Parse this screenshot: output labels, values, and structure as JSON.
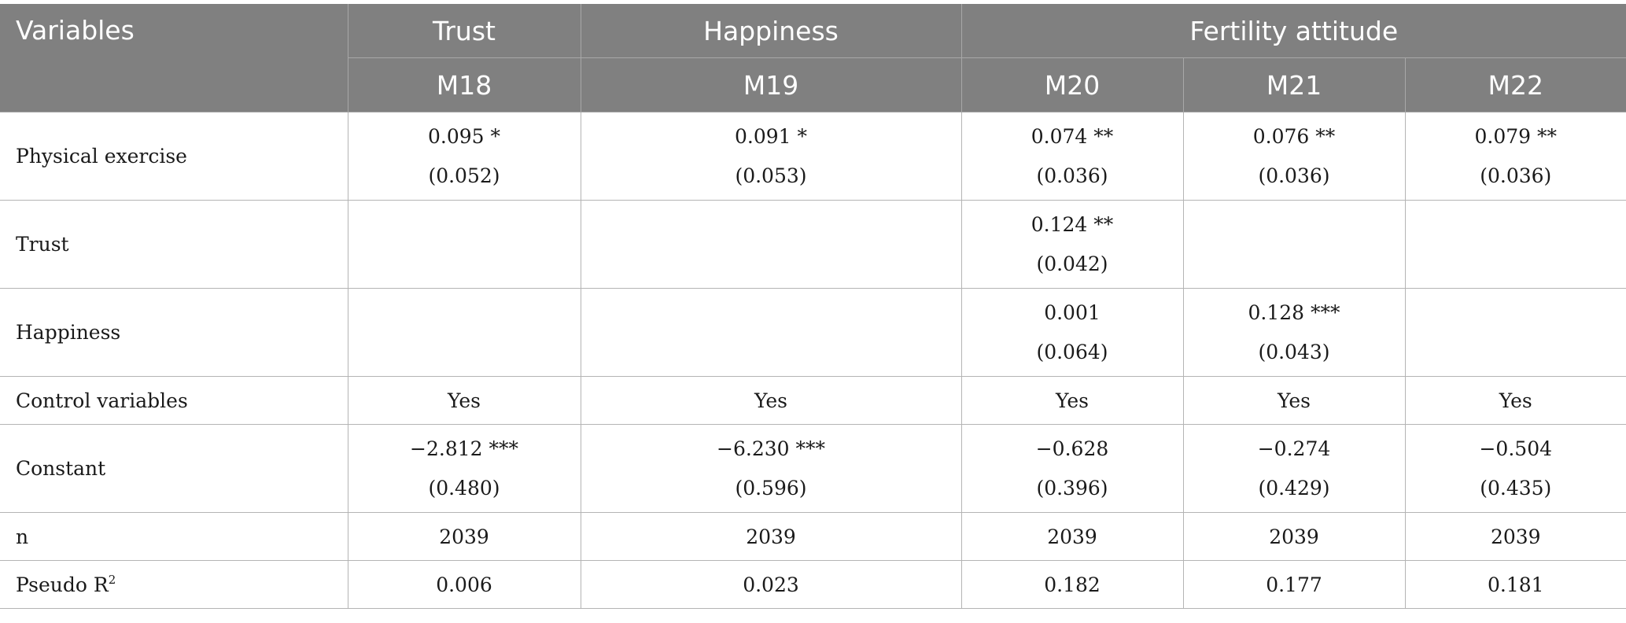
{
  "header": {
    "variables": "Variables",
    "groups": [
      "Trust",
      "Happiness",
      "Fertility attitude"
    ],
    "models": [
      "M18",
      "M19",
      "M20",
      "M21",
      "M22"
    ]
  },
  "rows": [
    {
      "label": "Physical exercise",
      "cells": [
        {
          "coef": "0.095 *",
          "se": "(0.052)"
        },
        {
          "coef": "0.091 *",
          "se": "(0.053)"
        },
        {
          "coef": "0.074 **",
          "se": "(0.036)"
        },
        {
          "coef": "0.076 **",
          "se": "(0.036)"
        },
        {
          "coef": "0.079 **",
          "se": "(0.036)"
        }
      ]
    },
    {
      "label": "Trust",
      "cells": [
        {
          "coef": "",
          "se": ""
        },
        {
          "coef": "",
          "se": ""
        },
        {
          "coef": "0.124 **",
          "se": "(0.042)"
        },
        {
          "coef": "",
          "se": ""
        },
        {
          "coef": "",
          "se": ""
        }
      ]
    },
    {
      "label": "Happiness",
      "cells": [
        {
          "coef": "",
          "se": ""
        },
        {
          "coef": "",
          "se": ""
        },
        {
          "coef": "0.001",
          "se": "(0.064)"
        },
        {
          "coef": "0.128 ***",
          "se": "(0.043)"
        },
        {
          "coef": "",
          "se": ""
        }
      ]
    },
    {
      "label": "Control variables",
      "values": [
        "Yes",
        "Yes",
        "Yes",
        "Yes",
        "Yes"
      ]
    },
    {
      "label": "Constant",
      "cells": [
        {
          "coef": "−2.812 ***",
          "se": "(0.480)"
        },
        {
          "coef": "−6.230 ***",
          "se": "(0.596)"
        },
        {
          "coef": "−0.628",
          "se": "(0.396)"
        },
        {
          "coef": "−0.274",
          "se": "(0.429)"
        },
        {
          "coef": "−0.504",
          "se": "(0.435)"
        }
      ]
    },
    {
      "label": "n",
      "values": [
        "2039",
        "2039",
        "2039",
        "2039",
        "2039"
      ]
    },
    {
      "label": "Pseudo R",
      "label_sup": "2",
      "values": [
        "0.006",
        "0.023",
        "0.182",
        "0.177",
        "0.181"
      ]
    }
  ]
}
